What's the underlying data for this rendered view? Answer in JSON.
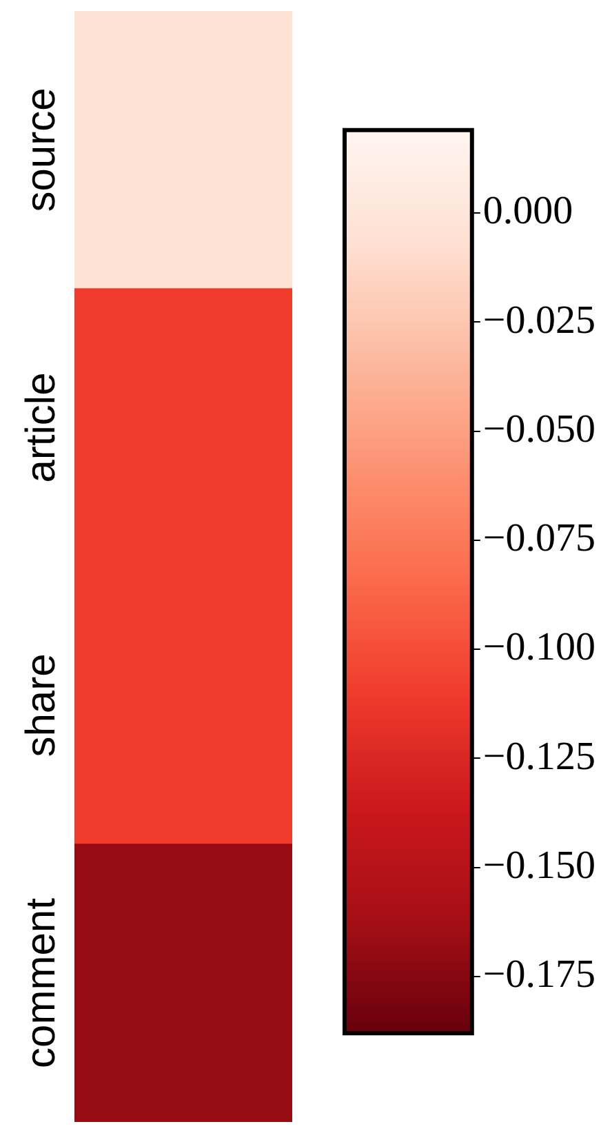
{
  "chart_data": {
    "type": "heatmap",
    "categories": [
      null
    ],
    "y_categories": [
      "source",
      "article",
      "share",
      "comment"
    ],
    "cells": [
      [
        -0.005
      ],
      [
        -0.11
      ],
      [
        -0.11
      ],
      [
        -0.168
      ]
    ],
    "clim": [
      -0.188,
      0.019
    ],
    "cticks": [
      {
        "value": 0,
        "label": "0.000"
      },
      {
        "value": -0.025,
        "label": "−0.025"
      },
      {
        "value": -0.05,
        "label": "−0.050"
      },
      {
        "value": -0.075,
        "label": "−0.075"
      },
      {
        "value": -0.1,
        "label": "−0.100"
      },
      {
        "value": -0.125,
        "label": "−0.125"
      },
      {
        "value": -0.15,
        "label": "−0.150"
      },
      {
        "value": -0.175,
        "label": "−0.175"
      }
    ],
    "grid": false
  }
}
